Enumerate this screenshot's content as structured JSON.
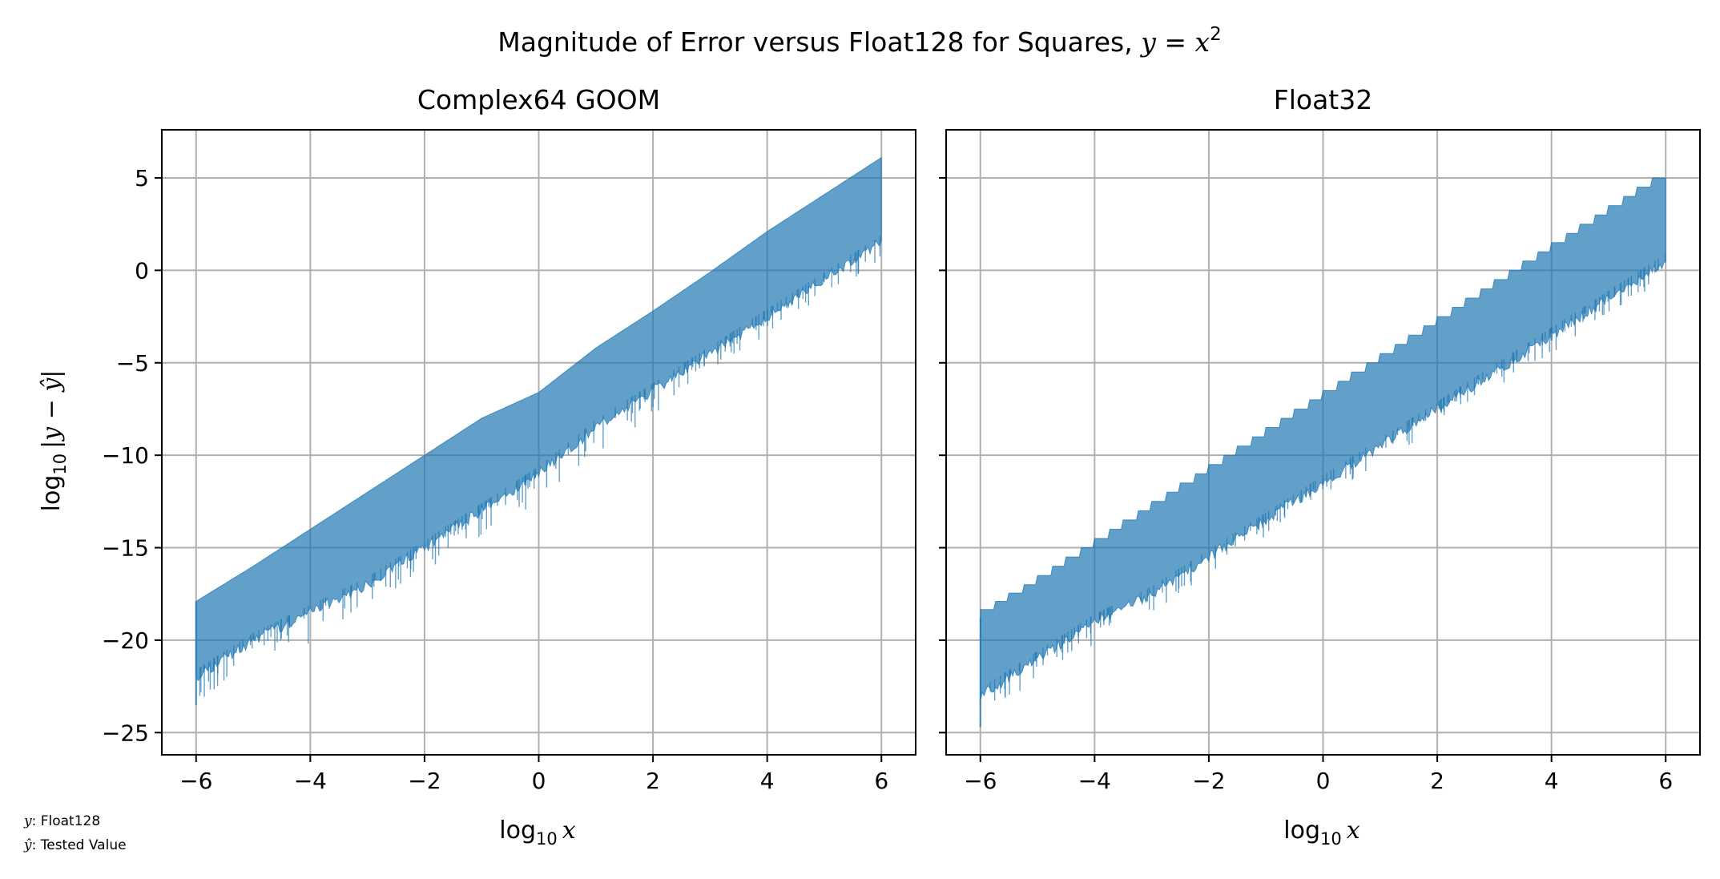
{
  "figure": {
    "suptitle_prefix": "Magnitude of Error versus Float128 for Squares, ",
    "suptitle_math_y": "y",
    "suptitle_math_eq": " = ",
    "suptitle_math_x": "x",
    "suptitle_math_exp": "2",
    "ylabel_log": "log",
    "ylabel_base": "10",
    "ylabel_expr": "|y − ŷ|",
    "xlabel_log": "log",
    "xlabel_base": "10",
    "xlabel_var": "x",
    "note_line1_sym": "y",
    "note_line1_text": ": Float128",
    "note_line2_sym": "ŷ",
    "note_line2_text": ": Tested Value"
  },
  "colors": {
    "fill": "#1f77b4",
    "grid": "#b0b0b0",
    "axis": "#000000"
  },
  "chart_data": [
    {
      "type": "area",
      "title": "Complex64 GOOM",
      "xlim": [
        -6.6,
        6.6
      ],
      "ylim": [
        -26.2,
        7.6
      ],
      "xticks": [
        -6,
        -4,
        -2,
        0,
        2,
        4,
        6
      ],
      "yticks": [
        -25,
        -20,
        -15,
        -10,
        -5,
        0,
        5
      ],
      "xtick_labels": [
        "−6",
        "−4",
        "−2",
        "0",
        "2",
        "4",
        "6"
      ],
      "ytick_labels": [
        "−25",
        "−20",
        "−15",
        "−10",
        "−5",
        "0",
        "5"
      ],
      "grid": true,
      "series": [
        {
          "x": [
            -6,
            -5,
            -4,
            -3,
            -2,
            -1,
            0,
            1,
            2,
            3,
            4,
            5,
            6
          ],
          "upper": [
            -17.9,
            -16.0,
            -14.0,
            -12.0,
            -10.0,
            -8.0,
            -6.6,
            -4.2,
            -2.2,
            -0.1,
            2.1,
            4.1,
            6.1
          ],
          "lower": [
            -22.0,
            -20.0,
            -18.5,
            -17.0,
            -15.0,
            -13.0,
            -11.0,
            -8.5,
            -6.5,
            -4.5,
            -2.5,
            -0.5,
            1.5
          ],
          "lower_min": [
            -23.5,
            -21.0,
            -20.2,
            -18.0,
            -16.5,
            -14.5,
            -12.5,
            -10.0,
            -8.0,
            -5.5,
            -3.5,
            -1.5,
            0.5
          ]
        }
      ]
    },
    {
      "type": "area",
      "title": "Float32",
      "xlim": [
        -6.6,
        6.6
      ],
      "ylim": [
        -26.2,
        7.6
      ],
      "xticks": [
        -6,
        -4,
        -2,
        0,
        2,
        4,
        6
      ],
      "yticks": [
        -25,
        -20,
        -15,
        -10,
        -5,
        0,
        5
      ],
      "xtick_labels": [
        "−6",
        "−4",
        "−2",
        "0",
        "2",
        "4",
        "6"
      ],
      "ytick_labels": [
        "",
        "",
        "",
        "",
        "",
        "",
        ""
      ],
      "grid": true,
      "series": [
        {
          "x": [
            -6,
            -5,
            -4,
            -3,
            -2,
            -1,
            0,
            1,
            2,
            3,
            4,
            5,
            6
          ],
          "upper": [
            -18.8,
            -17.0,
            -15.0,
            -13.0,
            -11.0,
            -9.0,
            -7.0,
            -5.0,
            -3.0,
            -1.0,
            1.0,
            3.0,
            5.0
          ],
          "lower": [
            -23.0,
            -21.0,
            -19.0,
            -17.5,
            -15.5,
            -13.5,
            -11.5,
            -9.5,
            -7.5,
            -5.5,
            -3.5,
            -1.5,
            0.5
          ],
          "lower_min": [
            -24.7,
            -22.0,
            -20.5,
            -18.5,
            -16.5,
            -14.5,
            -12.5,
            -10.5,
            -8.5,
            -6.5,
            -4.5,
            -2.5,
            -0.5
          ]
        }
      ]
    }
  ]
}
